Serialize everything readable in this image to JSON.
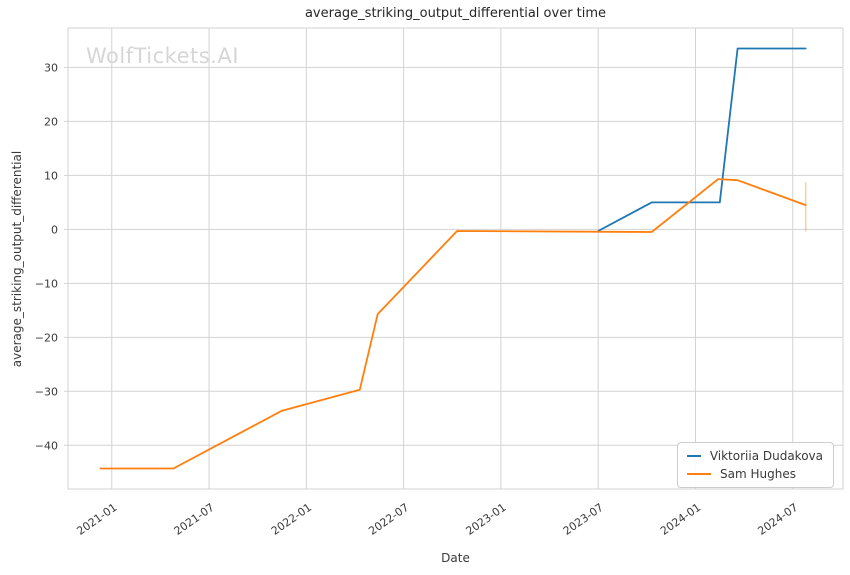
{
  "chart_data": {
    "type": "line",
    "title": "average_striking_output_differential over time",
    "xlabel": "Date",
    "ylabel": "average_striking_output_differential",
    "watermark": "WolfTickets.AI",
    "grid": true,
    "legend_position": "lower right",
    "colors": {
      "grid": "#d3d3d3",
      "tick_text": "#3a3a3a",
      "title_text": "#262626",
      "watermark": "#d6d6d6",
      "viktoriia": "#1f77b4",
      "sam": "#ff7f0e"
    },
    "x_unit": "months since 2021-01",
    "xlim": [
      -2.7,
      45.1
    ],
    "ylim": [
      -48.1,
      37.3
    ],
    "x_ticks": [
      {
        "m": 0,
        "label": "2021-01"
      },
      {
        "m": 6,
        "label": "2021-07"
      },
      {
        "m": 12,
        "label": "2022-01"
      },
      {
        "m": 18,
        "label": "2022-07"
      },
      {
        "m": 24,
        "label": "2023-01"
      },
      {
        "m": 30,
        "label": "2023-07"
      },
      {
        "m": 36,
        "label": "2024-01"
      },
      {
        "m": 42,
        "label": "2024-07"
      }
    ],
    "y_ticks": [
      {
        "v": 30,
        "label": "30"
      },
      {
        "v": 20,
        "label": "20"
      },
      {
        "v": 10,
        "label": "10"
      },
      {
        "v": 0,
        "label": "0"
      },
      {
        "v": -10,
        "label": "−10"
      },
      {
        "v": -20,
        "label": "−20"
      },
      {
        "v": -30,
        "label": "−30"
      },
      {
        "v": -40,
        "label": "−40"
      }
    ],
    "series": [
      {
        "name": "Viktoriia Dudakova",
        "color": "#1f77b4",
        "points": [
          {
            "date": "2023-07",
            "m": 30.0,
            "v": -0.3
          },
          {
            "date": "2023-10",
            "m": 33.3,
            "v": 5.0
          },
          {
            "date": "2024-02",
            "m": 37.5,
            "v": 5.0
          },
          {
            "date": "2024-03",
            "m": 38.6,
            "v": 33.5
          },
          {
            "date": "2024-07",
            "m": 42.8,
            "v": 33.5
          }
        ]
      },
      {
        "name": "Sam Hughes",
        "color": "#ff7f0e",
        "points": [
          {
            "date": "2020-12",
            "m": -0.7,
            "v": -44.3
          },
          {
            "date": "2021-04",
            "m": 3.8,
            "v": -44.3
          },
          {
            "date": "2021-11",
            "m": 10.5,
            "v": -33.6
          },
          {
            "date": "2022-04",
            "m": 15.3,
            "v": -29.7
          },
          {
            "date": "2022-05",
            "m": 16.4,
            "v": -15.7
          },
          {
            "date": "2022-10",
            "m": 21.3,
            "v": -0.3
          },
          {
            "date": "2023-10",
            "m": 33.3,
            "v": -0.5
          },
          {
            "date": "2024-02",
            "m": 37.4,
            "v": 9.3
          },
          {
            "date": "2024-03",
            "m": 38.6,
            "v": 9.1
          },
          {
            "date": "2024-07",
            "m": 42.8,
            "v": 4.5
          }
        ],
        "error_bar_last": {
          "m": 42.8,
          "lo": -0.4,
          "hi": 8.7
        }
      }
    ]
  }
}
